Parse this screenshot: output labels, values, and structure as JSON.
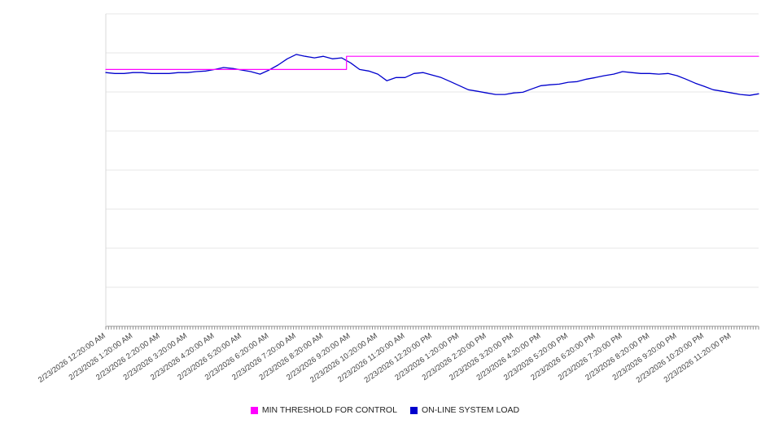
{
  "page": {
    "background_color": "#ffffff"
  },
  "chart_data": {
    "type": "line",
    "title": "",
    "x_axis": {
      "hours_span": 24,
      "label_rotation_deg": -35,
      "minor_tick_count": 240,
      "labels": [
        "2/23/2026 12:20:00 AM",
        "2/23/2026 1:20:00 AM",
        "2/23/2026 2:20:00 AM",
        "2/23/2026 3:20:00 AM",
        "2/23/2026 4:20:00 AM",
        "2/23/2026 5:20:00 AM",
        "2/23/2026 6:20:00 AM",
        "2/23/2026 7:20:00 AM",
        "2/23/2026 8:20:00 AM",
        "2/23/2026 9:20:00 AM",
        "2/23/2026 10:20:00 AM",
        "2/23/2026 11:20:00 AM",
        "2/23/2026 12:20:00 PM",
        "2/23/2026 1:20:00 PM",
        "2/23/2026 2:20:00 PM",
        "2/23/2026 3:20:00 PM",
        "2/23/2026 4:20:00 PM",
        "2/23/2026 5:20:00 PM",
        "2/23/2026 6:20:00 PM",
        "2/23/2026 7:20:00 PM",
        "2/23/2026 8:20:00 PM",
        "2/23/2026 9:20:00 PM",
        "2/23/2026 10:20:00 PM",
        "2/23/2026 11:20:00 PM"
      ]
    },
    "y_axis": {
      "labels_visible": false,
      "range": [
        0,
        100
      ],
      "gridline_intervals": 8,
      "gridline_color": "#e7e7e7",
      "axis_color": "#9a9a9a",
      "left_border_color": "#d9d9d9",
      "tick_color": "#8f8f8f",
      "label_color": "#444444"
    },
    "series": [
      {
        "name": "ON-LINE SYSTEM LOAD",
        "color": "#0000cd",
        "width": 1.3,
        "points": [
          [
            0,
            81.2
          ],
          [
            0.33,
            80.9
          ],
          [
            0.67,
            80.9
          ],
          [
            1,
            81.2
          ],
          [
            1.33,
            81.2
          ],
          [
            1.67,
            80.9
          ],
          [
            2,
            80.9
          ],
          [
            2.33,
            80.9
          ],
          [
            2.67,
            81.2
          ],
          [
            3,
            81.2
          ],
          [
            3.33,
            81.5
          ],
          [
            3.67,
            81.7
          ],
          [
            4,
            82.2
          ],
          [
            4.33,
            82.8
          ],
          [
            4.67,
            82.5
          ],
          [
            5,
            82.0
          ],
          [
            5.33,
            81.5
          ],
          [
            5.67,
            80.7
          ],
          [
            6,
            82.0
          ],
          [
            6.33,
            83.6
          ],
          [
            6.67,
            85.6
          ],
          [
            7,
            87.0
          ],
          [
            7.33,
            86.4
          ],
          [
            7.67,
            85.9
          ],
          [
            8,
            86.4
          ],
          [
            8.33,
            85.6
          ],
          [
            8.67,
            85.9
          ],
          [
            9,
            84.3
          ],
          [
            9.33,
            82.2
          ],
          [
            9.67,
            81.7
          ],
          [
            10,
            80.7
          ],
          [
            10.33,
            78.6
          ],
          [
            10.67,
            79.6
          ],
          [
            11,
            79.6
          ],
          [
            11.33,
            80.9
          ],
          [
            11.67,
            81.2
          ],
          [
            12,
            80.4
          ],
          [
            12.33,
            79.6
          ],
          [
            12.67,
            78.3
          ],
          [
            13,
            77.0
          ],
          [
            13.33,
            75.7
          ],
          [
            13.67,
            75.2
          ],
          [
            14,
            74.7
          ],
          [
            14.33,
            74.2
          ],
          [
            14.67,
            74.2
          ],
          [
            15,
            74.7
          ],
          [
            15.33,
            74.9
          ],
          [
            15.67,
            76.0
          ],
          [
            16,
            77.0
          ],
          [
            16.33,
            77.3
          ],
          [
            16.67,
            77.5
          ],
          [
            17,
            78.1
          ],
          [
            17.33,
            78.3
          ],
          [
            17.67,
            79.1
          ],
          [
            18,
            79.6
          ],
          [
            18.33,
            80.2
          ],
          [
            18.67,
            80.7
          ],
          [
            19,
            81.5
          ],
          [
            19.33,
            81.2
          ],
          [
            19.67,
            80.9
          ],
          [
            20,
            80.9
          ],
          [
            20.33,
            80.7
          ],
          [
            20.67,
            80.9
          ],
          [
            21,
            80.2
          ],
          [
            21.33,
            79.1
          ],
          [
            21.67,
            77.8
          ],
          [
            22,
            76.8
          ],
          [
            22.33,
            75.7
          ],
          [
            22.67,
            75.2
          ],
          [
            23,
            74.7
          ],
          [
            23.33,
            74.2
          ],
          [
            23.67,
            73.9
          ],
          [
            24,
            74.4
          ]
        ]
      },
      {
        "name": "MIN THRESHOLD FOR CONTROL",
        "color": "#ff00ff",
        "width": 1.2,
        "points": [
          [
            0,
            82.2
          ],
          [
            8.85,
            82.2
          ],
          [
            8.85,
            86.4
          ],
          [
            24,
            86.4
          ]
        ]
      }
    ],
    "legend": {
      "position": "bottom-center",
      "items": [
        {
          "label": "MIN THRESHOLD FOR CONTROL",
          "color": "#ff00ff"
        },
        {
          "label": "ON-LINE SYSTEM LOAD",
          "color": "#0000cd"
        }
      ]
    }
  }
}
